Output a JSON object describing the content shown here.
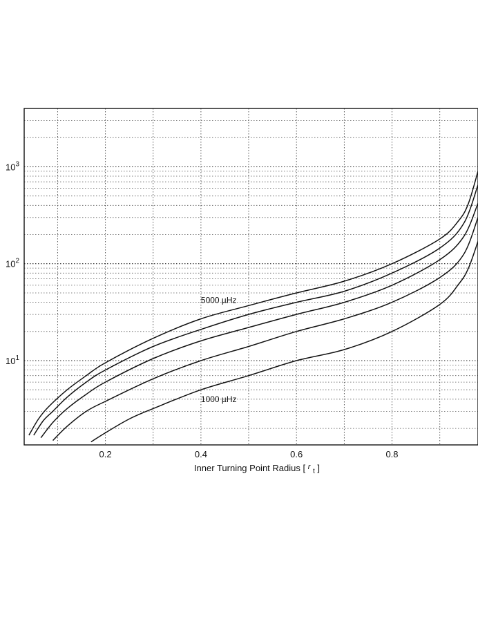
{
  "chart_data": {
    "type": "line",
    "xlabel": "Inner Turning Point Radius [ r_t ]",
    "xlabel_main": "Inner Turning Point Radius [",
    "xlabel_sym": "r",
    "xlabel_sub": "t",
    "xlabel_close": "]",
    "ylabel": "",
    "xlim": [
      0.03,
      0.98
    ],
    "ylim": [
      1.35,
      4000
    ],
    "yscale": "log",
    "grid": true,
    "x_tick_labels": [
      {
        "value": 0.2,
        "label": "0.2"
      },
      {
        "value": 0.4,
        "label": "0.4"
      },
      {
        "value": 0.6,
        "label": "0.6"
      },
      {
        "value": 0.8,
        "label": "0.8"
      }
    ],
    "y_tick_labels": [
      {
        "value": 10,
        "base": "10",
        "exp": "1"
      },
      {
        "value": 100,
        "base": "10",
        "exp": "2"
      },
      {
        "value": 1000,
        "base": "10",
        "exp": "3"
      }
    ],
    "annotations": [
      {
        "text": "5000 µHz",
        "x": 0.4,
        "y": 42
      },
      {
        "text": "1000 µHz",
        "x": 0.4,
        "y": 4.0
      }
    ],
    "series": [
      {
        "x": [
          0.04,
          0.06,
          0.08,
          0.12,
          0.16,
          0.2,
          0.3,
          0.4,
          0.5,
          0.6,
          0.7,
          0.8,
          0.9,
          0.94,
          0.96,
          0.98
        ],
        "y": [
          1.7,
          2.5,
          3.3,
          5.0,
          7.0,
          9.5,
          17,
          27,
          37,
          50,
          66,
          100,
          180,
          280,
          420,
          900
        ]
      },
      {
        "x": [
          0.05,
          0.07,
          0.09,
          0.12,
          0.16,
          0.2,
          0.3,
          0.4,
          0.5,
          0.6,
          0.7,
          0.8,
          0.9,
          0.95,
          0.98
        ],
        "y": [
          1.7,
          2.4,
          3.0,
          4.2,
          6.0,
          8.0,
          14,
          21,
          30,
          40,
          52,
          80,
          145,
          260,
          650
        ]
      },
      {
        "x": [
          0.065,
          0.09,
          0.12,
          0.16,
          0.2,
          0.3,
          0.4,
          0.5,
          0.6,
          0.7,
          0.8,
          0.9,
          0.95,
          0.98
        ],
        "y": [
          1.6,
          2.3,
          3.2,
          4.5,
          6.0,
          10.5,
          16,
          22,
          30,
          40,
          60,
          110,
          190,
          420
        ]
      },
      {
        "x": [
          0.09,
          0.12,
          0.16,
          0.2,
          0.3,
          0.4,
          0.5,
          0.6,
          0.7,
          0.8,
          0.9,
          0.95,
          0.98
        ],
        "y": [
          1.5,
          2.1,
          3.0,
          3.8,
          6.5,
          10,
          14,
          20,
          27,
          40,
          72,
          125,
          300
        ]
      },
      {
        "x": [
          0.17,
          0.2,
          0.25,
          0.3,
          0.4,
          0.5,
          0.6,
          0.7,
          0.8,
          0.9,
          0.94,
          0.96,
          0.98
        ],
        "y": [
          1.45,
          1.8,
          2.5,
          3.2,
          5.0,
          7.0,
          10,
          13,
          20,
          38,
          62,
          90,
          170
        ]
      }
    ]
  }
}
